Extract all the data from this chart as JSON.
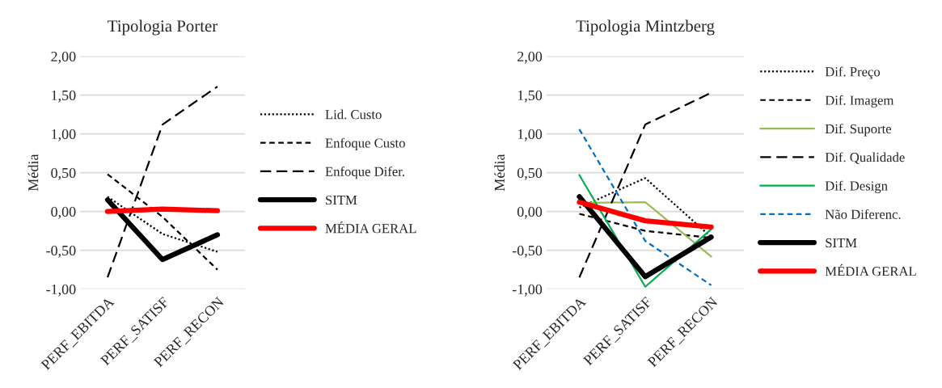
{
  "chart_data": [
    {
      "type": "line",
      "title": "Tipologia Porter",
      "ylabel": "Média",
      "categories": [
        "PERF_EBITDA",
        "PERF_SATISF",
        "PERF_RECON"
      ],
      "ylim": [
        -1,
        2
      ],
      "yticks": [
        {
          "value": -1,
          "label": "-1,00"
        },
        {
          "value": -0.5,
          "label": "-0,50"
        },
        {
          "value": 0,
          "label": "0,00"
        },
        {
          "value": 0.5,
          "label": "0,50"
        },
        {
          "value": 1,
          "label": "1,00"
        },
        {
          "value": 1.5,
          "label": "1,50"
        },
        {
          "value": 2,
          "label": "2,00"
        }
      ],
      "grid": "y",
      "legend": "right",
      "marker": "none",
      "series": [
        {
          "name": "Lid. Custo",
          "color": "#000000",
          "line_style": "dotted",
          "values": [
            0.19,
            -0.29,
            -0.52
          ]
        },
        {
          "name": "Enfoque Custo",
          "color": "#000000",
          "line_style": "dashed",
          "values": [
            0.48,
            -0.07,
            -0.75
          ]
        },
        {
          "name": "Enfoque Difer.",
          "color": "#000000",
          "line_style": "longdash",
          "values": [
            -0.85,
            1.12,
            1.61
          ]
        },
        {
          "name": "SITM",
          "color": "#000000",
          "line_style": "solid",
          "values": [
            0.15,
            -0.62,
            -0.3
          ]
        },
        {
          "name": "MÉDIA GERAL",
          "color": "#ff0000",
          "line_style": "solid",
          "values": [
            0.0,
            0.03,
            0.01
          ]
        }
      ]
    },
    {
      "type": "line",
      "title": "Tipologia Mintzberg",
      "ylabel": "Média",
      "categories": [
        "PERF_EBITDA",
        "PERF_SATISF",
        "PERF_RECON"
      ],
      "ylim": [
        -1,
        2
      ],
      "yticks": [
        {
          "value": -1,
          "label": "-1,00"
        },
        {
          "value": -0.5,
          "label": "-0,50"
        },
        {
          "value": 0,
          "label": "0,00"
        },
        {
          "value": 0.5,
          "label": "0,50"
        },
        {
          "value": 1,
          "label": "1,00"
        },
        {
          "value": 1.5,
          "label": "1,50"
        },
        {
          "value": 2,
          "label": "2,00"
        }
      ],
      "grid": "y",
      "legend": "right",
      "marker": "none",
      "series": [
        {
          "name": "Dif. Preço",
          "color": "#000000",
          "line_style": "dotted",
          "values": [
            0.05,
            0.43,
            -0.33
          ]
        },
        {
          "name": "Dif. Imagem",
          "color": "#000000",
          "line_style": "dashed",
          "values": [
            -0.03,
            -0.25,
            -0.34
          ]
        },
        {
          "name": "Dif. Suporte",
          "color": "#9bbb59",
          "line_style": "solid",
          "values": [
            0.11,
            0.12,
            -0.58
          ]
        },
        {
          "name": "Dif. Qualidade",
          "color": "#000000",
          "line_style": "longdash",
          "values": [
            -0.85,
            1.12,
            1.53
          ]
        },
        {
          "name": "Dif. Design",
          "color": "#00b050",
          "line_style": "solid",
          "values": [
            0.47,
            -0.97,
            -0.23
          ]
        },
        {
          "name": "Não Diferenc.",
          "color": "#0070c0",
          "line_style": "dashed",
          "values": [
            1.06,
            -0.38,
            -0.95
          ]
        },
        {
          "name": "SITM",
          "color": "#000000",
          "line_style": "solid",
          "values": [
            0.19,
            -0.84,
            -0.33
          ]
        },
        {
          "name": "MÉDIA GERAL",
          "color": "#ff0000",
          "line_style": "solid",
          "values": [
            0.12,
            -0.12,
            -0.2
          ]
        }
      ]
    }
  ]
}
